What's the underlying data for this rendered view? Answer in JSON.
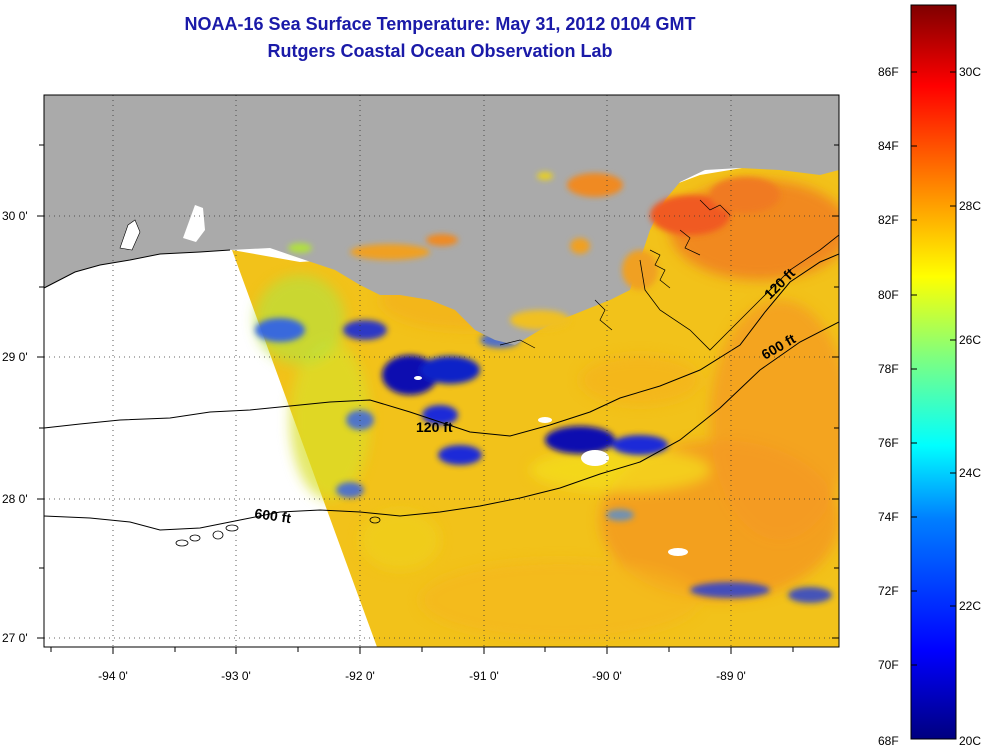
{
  "title": {
    "line1": "NOAA-16 Sea Surface Temperature:  May 31, 2012 0104 GMT",
    "line2": "Rutgers Coastal Ocean Observation Lab"
  },
  "map": {
    "x_ticks": [
      "-94 0'",
      "-93 0'",
      "-92 0'",
      "-91 0'",
      "-90 0'",
      "-89 0'"
    ],
    "y_ticks": [
      "30 0'",
      "29 0'",
      "28 0'",
      "27 0'"
    ],
    "contours": [
      "120 ft",
      "600 ft",
      "120 ft",
      "600 ft"
    ],
    "colors": {
      "land": "#aaaaaa",
      "no_data": "#ffffff",
      "water_base": "#f2c21a"
    }
  },
  "colorbar": {
    "fahrenheit_labels": [
      "86F",
      "84F",
      "82F",
      "80F",
      "78F",
      "76F",
      "74F",
      "72F",
      "70F",
      "68F"
    ],
    "celsius_labels": [
      "30C",
      "28C",
      "26C",
      "24C",
      "22C",
      "20C"
    ],
    "colormap": [
      "#00007f",
      "#0000ff",
      "#007fff",
      "#00ffff",
      "#7fff7f",
      "#ffff00",
      "#ff7f00",
      "#ff0000",
      "#7f0000"
    ]
  }
}
